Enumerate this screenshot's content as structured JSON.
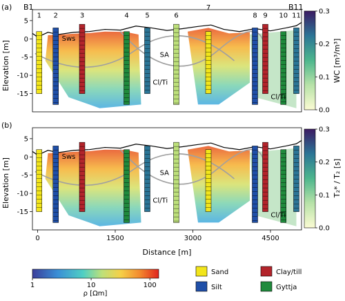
{
  "chart_data": [
    {
      "type": "heatmap",
      "panel_label": "(a)",
      "start_label": "B1",
      "end_label": "B11",
      "ylabel": "Elevation [m]",
      "yticks": [
        5,
        0,
        -5,
        -10,
        -15
      ],
      "ylim": [
        -20,
        8
      ],
      "xlim": [
        -100,
        5100
      ],
      "colorbar": {
        "label": "WC [m³/m³]",
        "ticks": [
          0.0,
          0.1,
          0.2,
          0.3
        ],
        "range": [
          0,
          0.3
        ]
      },
      "boreholes": [
        {
          "label": "1",
          "distance": 30
        },
        {
          "label": "2",
          "distance": 350
        },
        {
          "label": "3",
          "distance": 860
        },
        {
          "label": "4",
          "distance": 1720
        },
        {
          "label": "5",
          "distance": 2120
        },
        {
          "label": "6",
          "distance": 2680
        },
        {
          "label": "7",
          "distance": 3300
        },
        {
          "label": "8",
          "distance": 4200
        },
        {
          "label": "9",
          "distance": 4400
        },
        {
          "label": "10",
          "distance": 4750
        },
        {
          "label": "11",
          "distance": 5000
        }
      ],
      "annotations": [
        {
          "text": "Sws",
          "distance": 600,
          "elevation": -0.5
        },
        {
          "text": "SA",
          "distance": 2450,
          "elevation": -5
        },
        {
          "text": "Cl/Ti",
          "distance": 2370,
          "elevation": -12.5
        },
        {
          "text": "Cl/Ti",
          "distance": 4650,
          "elevation": -16.5
        }
      ]
    },
    {
      "type": "heatmap",
      "panel_label": "(b)",
      "ylabel": "Elevation [m]",
      "xlabel": "Distance [m]",
      "xticks": [
        0,
        1500,
        3000,
        4500
      ],
      "yticks": [
        5,
        0,
        -5,
        -10,
        -15
      ],
      "ylim": [
        -20,
        8
      ],
      "xlim": [
        -100,
        5100
      ],
      "colorbar": {
        "label": "T₂* / T₂ [s]",
        "ticks": [
          0.0,
          0.1,
          0.2,
          0.3
        ],
        "range": [
          0,
          0.3
        ]
      },
      "annotations": [
        {
          "text": "Sws",
          "distance": 600,
          "elevation": -0.5
        },
        {
          "text": "SA",
          "distance": 2450,
          "elevation": -5
        },
        {
          "text": "Cl/Ti",
          "distance": 2370,
          "elevation": -12.5
        },
        {
          "text": "Cl/Ti",
          "distance": 4650,
          "elevation": -16.5
        }
      ]
    }
  ],
  "resistivity_colorbar": {
    "label": "ρ [Ωm]",
    "ticks": [
      "1",
      "10",
      "100"
    ]
  },
  "legend": [
    {
      "label": "Sand",
      "color": "#f2e51b"
    },
    {
      "label": "Clay/till",
      "color": "#b3242b"
    },
    {
      "label": "Silt",
      "color": "#1f4fa8"
    },
    {
      "label": "Gyttja",
      "color": "#1f8a3c"
    }
  ]
}
